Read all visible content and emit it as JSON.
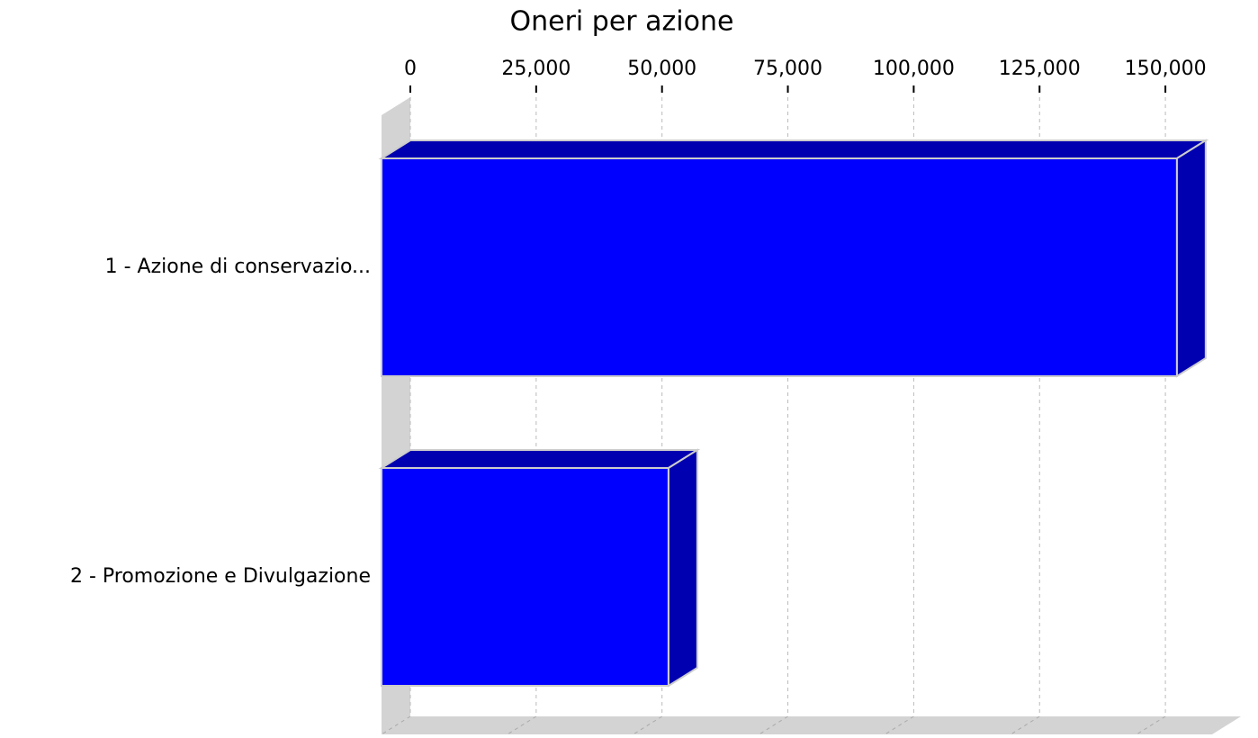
{
  "chart_data": {
    "type": "bar",
    "orientation": "horizontal",
    "title": "Oneri per azione",
    "categories": [
      "1 - Azione di conservazio...",
      "2 - Promozione e Divulgazione"
    ],
    "values": [
      158000,
      57000
    ],
    "color": "#0000ff",
    "xlim": [
      0,
      165000
    ],
    "xticks": [
      0,
      {
        "value": 25000,
        "label": "25,000"
      },
      {
        "value": 50000,
        "label": "50,000"
      },
      {
        "value": 75000,
        "label": "75,000"
      },
      {
        "value": 100000,
        "label": "100,000"
      },
      {
        "value": 125000,
        "label": "125,000"
      },
      {
        "value": 150000,
        "label": "150,000"
      }
    ],
    "grid": true
  }
}
